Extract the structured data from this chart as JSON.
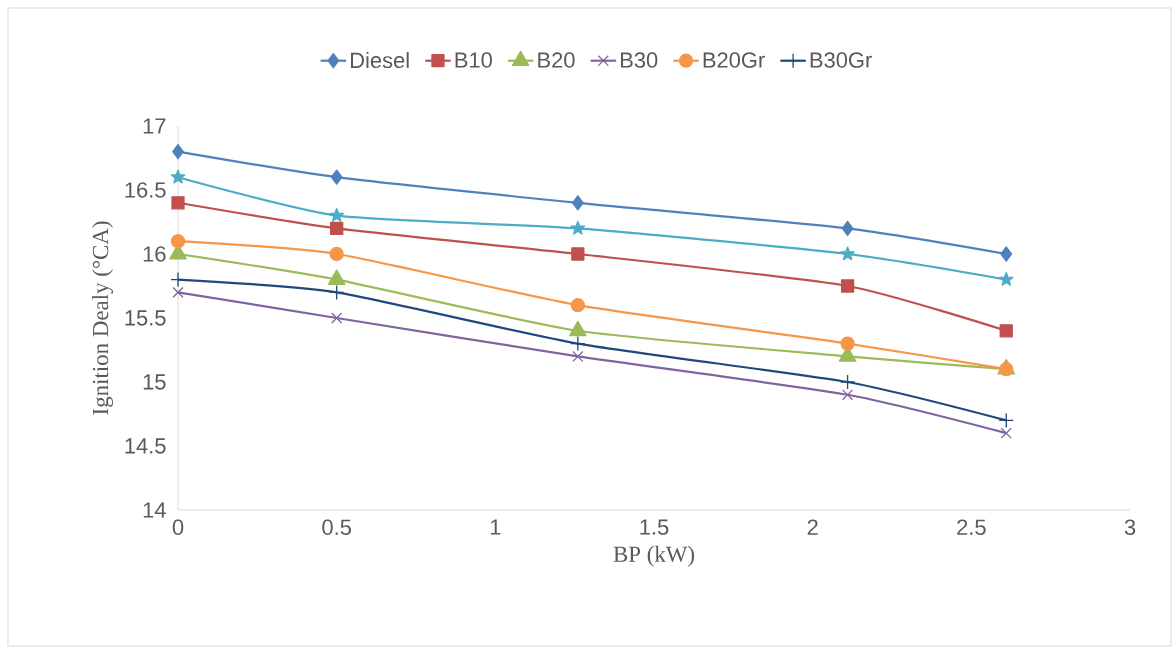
{
  "chart_data": {
    "type": "line",
    "xlabel": "BP (kW)",
    "ylabel": "Ignition  Dealy  (°CA)",
    "x": [
      0,
      0.5,
      1.26,
      2.11,
      2.61
    ],
    "xlim": [
      0,
      3
    ],
    "xticks": [
      0,
      0.5,
      1,
      1.5,
      2,
      2.5,
      3
    ],
    "ylim": [
      14,
      17
    ],
    "yticks": [
      14,
      14.5,
      15,
      15.5,
      16,
      16.5,
      17
    ],
    "legend": "top",
    "series": [
      {
        "name": "Diesel",
        "color": "#4f81bd",
        "marker": "diamond",
        "values": [
          16.8,
          16.6,
          16.4,
          16.2,
          16.0
        ]
      },
      {
        "name": "B10",
        "color": "#c0504d",
        "marker": "square",
        "values": [
          16.4,
          16.2,
          16.0,
          15.75,
          15.4
        ]
      },
      {
        "name": "B20",
        "color": "#9bbb59",
        "marker": "triangle",
        "values": [
          16.0,
          15.8,
          15.4,
          15.2,
          15.1
        ]
      },
      {
        "name": "B30",
        "color": "#8064a2",
        "marker": "cross",
        "values": [
          15.7,
          15.5,
          15.2,
          14.9,
          14.6
        ]
      },
      {
        "name": "B20Gr",
        "color": "#f79646",
        "marker": "circle",
        "values": [
          16.1,
          16.0,
          15.6,
          15.3,
          15.1
        ]
      },
      {
        "name": "B30Gr",
        "color": "#1f497d",
        "marker": "plus",
        "values": [
          15.8,
          15.7,
          15.3,
          15.0,
          14.7
        ]
      },
      {
        "color": "#4bacc6",
        "marker": "star",
        "values": [
          16.6,
          16.3,
          16.2,
          16.0,
          15.8
        ]
      }
    ]
  }
}
